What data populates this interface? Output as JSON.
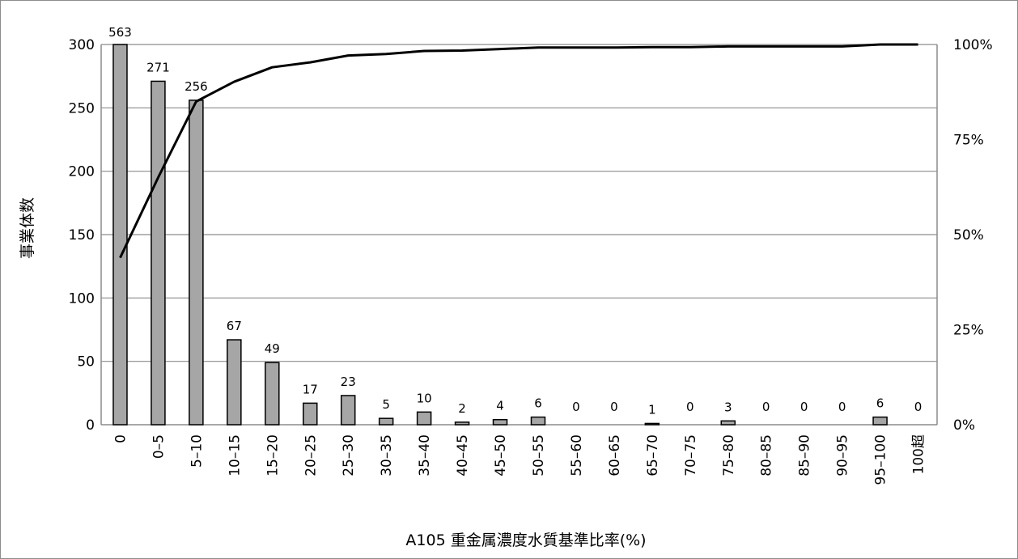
{
  "chart_data": {
    "type": "bar",
    "xlabel": "A105 重金属濃度水質基準比率(%)",
    "ylabel": "事業体数",
    "ylim": [
      0,
      300
    ],
    "yticks": [
      "0",
      "50",
      "100",
      "150",
      "200",
      "250",
      "300"
    ],
    "y2lim": [
      0,
      100
    ],
    "y2ticks": [
      "0%",
      "25%",
      "50%",
      "75%",
      "100%"
    ],
    "grid": true,
    "categories": [
      "0",
      "0–5",
      "5–10",
      "10–15",
      "15–20",
      "20–25",
      "25–30",
      "30–35",
      "35–40",
      "40–45",
      "45–50",
      "50–55",
      "55–60",
      "60–65",
      "65–70",
      "70–75",
      "75–80",
      "80–85",
      "85–90",
      "90–95",
      "95–100",
      "100超"
    ],
    "series": [
      {
        "values": [
          563,
          271,
          256,
          67,
          49,
          17,
          23,
          5,
          10,
          2,
          4,
          6,
          0,
          0,
          1,
          0,
          3,
          0,
          0,
          0,
          6,
          0
        ],
        "data_labels": [
          "563",
          "271",
          "256",
          "67",
          "49",
          "17",
          "23",
          "5",
          "10",
          "2",
          "4",
          "6",
          "0",
          "0",
          "1",
          "0",
          "3",
          "0",
          "0",
          "0",
          "6",
          "0"
        ],
        "color": "#a6a6a6"
      },
      {
        "type": "line",
        "axis": "right",
        "values": [
          43.9,
          65.0,
          85.0,
          90.2,
          94.0,
          95.3,
          97.1,
          97.5,
          98.3,
          98.4,
          98.8,
          99.2,
          99.2,
          99.2,
          99.3,
          99.3,
          99.5,
          99.5,
          99.5,
          99.5,
          100.0,
          100.0
        ],
        "color": "#000000"
      }
    ],
    "data_label_overrides": {
      "0": "above-frame"
    }
  }
}
